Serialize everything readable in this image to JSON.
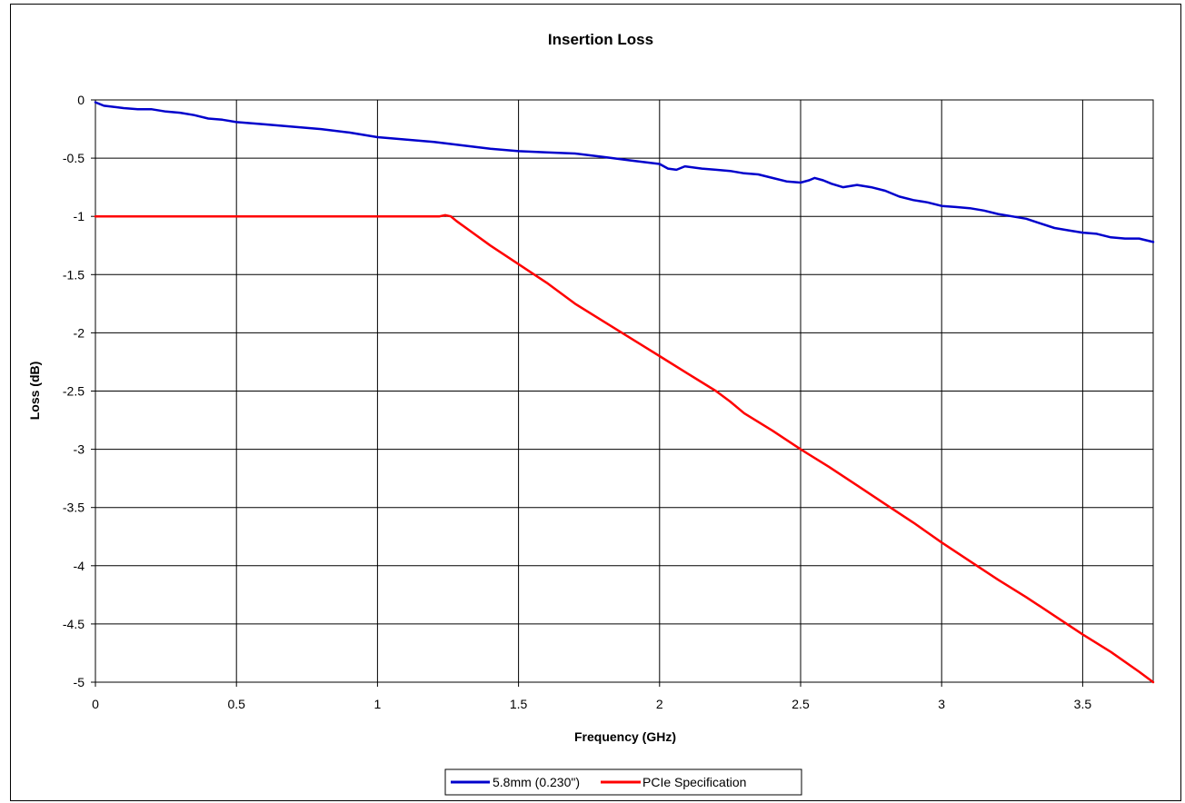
{
  "chart_data": {
    "type": "line",
    "title": "Insertion Loss",
    "xlabel": "Frequency (GHz)",
    "ylabel": "Loss (dB)",
    "xlim": [
      0,
      3.75
    ],
    "ylim": [
      -5,
      0
    ],
    "xticks": [
      0,
      0.5,
      1,
      1.5,
      2,
      2.5,
      3,
      3.5
    ],
    "xtick_labels": [
      "0",
      "0.5",
      "1",
      "1.5",
      "2",
      "2.5",
      "3",
      "3.5"
    ],
    "yticks": [
      0,
      -0.5,
      -1,
      -1.5,
      -2,
      -2.5,
      -3,
      -3.5,
      -4,
      -4.5,
      -5
    ],
    "ytick_labels": [
      "0",
      "-0.5",
      "-1",
      "-1.5",
      "-2",
      "-2.5",
      "-3",
      "-3.5",
      "-4",
      "-4.5",
      "-5"
    ],
    "grid": true,
    "legend_position": "bottom",
    "series": [
      {
        "name": "5.8mm (0.230\")",
        "color": "#0000cc",
        "x": [
          0,
          0.03,
          0.1,
          0.15,
          0.2,
          0.25,
          0.3,
          0.35,
          0.4,
          0.45,
          0.5,
          0.6,
          0.7,
          0.8,
          0.9,
          1.0,
          1.1,
          1.2,
          1.3,
          1.4,
          1.5,
          1.6,
          1.7,
          1.8,
          1.9,
          2.0,
          2.03,
          2.06,
          2.09,
          2.15,
          2.2,
          2.25,
          2.3,
          2.35,
          2.4,
          2.45,
          2.5,
          2.53,
          2.55,
          2.58,
          2.61,
          2.65,
          2.7,
          2.75,
          2.8,
          2.85,
          2.9,
          2.95,
          3.0,
          3.05,
          3.1,
          3.15,
          3.2,
          3.25,
          3.3,
          3.35,
          3.4,
          3.45,
          3.5,
          3.55,
          3.6,
          3.65,
          3.7,
          3.75
        ],
        "y": [
          -0.02,
          -0.05,
          -0.07,
          -0.08,
          -0.08,
          -0.1,
          -0.11,
          -0.13,
          -0.16,
          -0.17,
          -0.19,
          -0.21,
          -0.23,
          -0.25,
          -0.28,
          -0.32,
          -0.34,
          -0.36,
          -0.39,
          -0.42,
          -0.44,
          -0.45,
          -0.46,
          -0.49,
          -0.52,
          -0.55,
          -0.59,
          -0.6,
          -0.57,
          -0.59,
          -0.6,
          -0.61,
          -0.63,
          -0.64,
          -0.67,
          -0.7,
          -0.71,
          -0.69,
          -0.67,
          -0.69,
          -0.72,
          -0.75,
          -0.73,
          -0.75,
          -0.78,
          -0.83,
          -0.86,
          -0.88,
          -0.91,
          -0.92,
          -0.93,
          -0.95,
          -0.98,
          -1.0,
          -1.02,
          -1.06,
          -1.1,
          -1.12,
          -1.14,
          -1.15,
          -1.18,
          -1.19,
          -1.19,
          -1.22
        ]
      },
      {
        "name": "PCIe Specification",
        "color": "#ff0000",
        "x": [
          0,
          1.0,
          1.22,
          1.24,
          1.26,
          1.28,
          1.4,
          1.5,
          1.6,
          1.7,
          1.8,
          1.9,
          2.0,
          2.1,
          2.2,
          2.25,
          2.3,
          2.4,
          2.5,
          2.6,
          2.7,
          2.8,
          2.9,
          3.0,
          3.1,
          3.2,
          3.3,
          3.4,
          3.5,
          3.6,
          3.7,
          3.75
        ],
        "y": [
          -1.0,
          -1.0,
          -1.0,
          -0.99,
          -1.0,
          -1.04,
          -1.25,
          -1.41,
          -1.57,
          -1.75,
          -1.9,
          -2.05,
          -2.2,
          -2.35,
          -2.5,
          -2.59,
          -2.69,
          -2.84,
          -3.0,
          -3.15,
          -3.31,
          -3.47,
          -3.63,
          -3.8,
          -3.96,
          -4.12,
          -4.27,
          -4.43,
          -4.59,
          -4.74,
          -4.91,
          -5.0
        ]
      }
    ]
  }
}
